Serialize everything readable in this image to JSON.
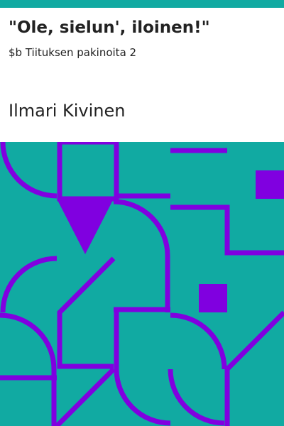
{
  "book": {
    "title": "\"Ole, sielun', iloinen!\"",
    "subtitle": "$b Tiituksen pakinoita 2",
    "author": "Ilmari Kivinen"
  },
  "colors": {
    "background": "#ffffff",
    "pattern_background": "#11aaa2",
    "pattern_stroke": "#8000e0",
    "text": "#222222"
  }
}
